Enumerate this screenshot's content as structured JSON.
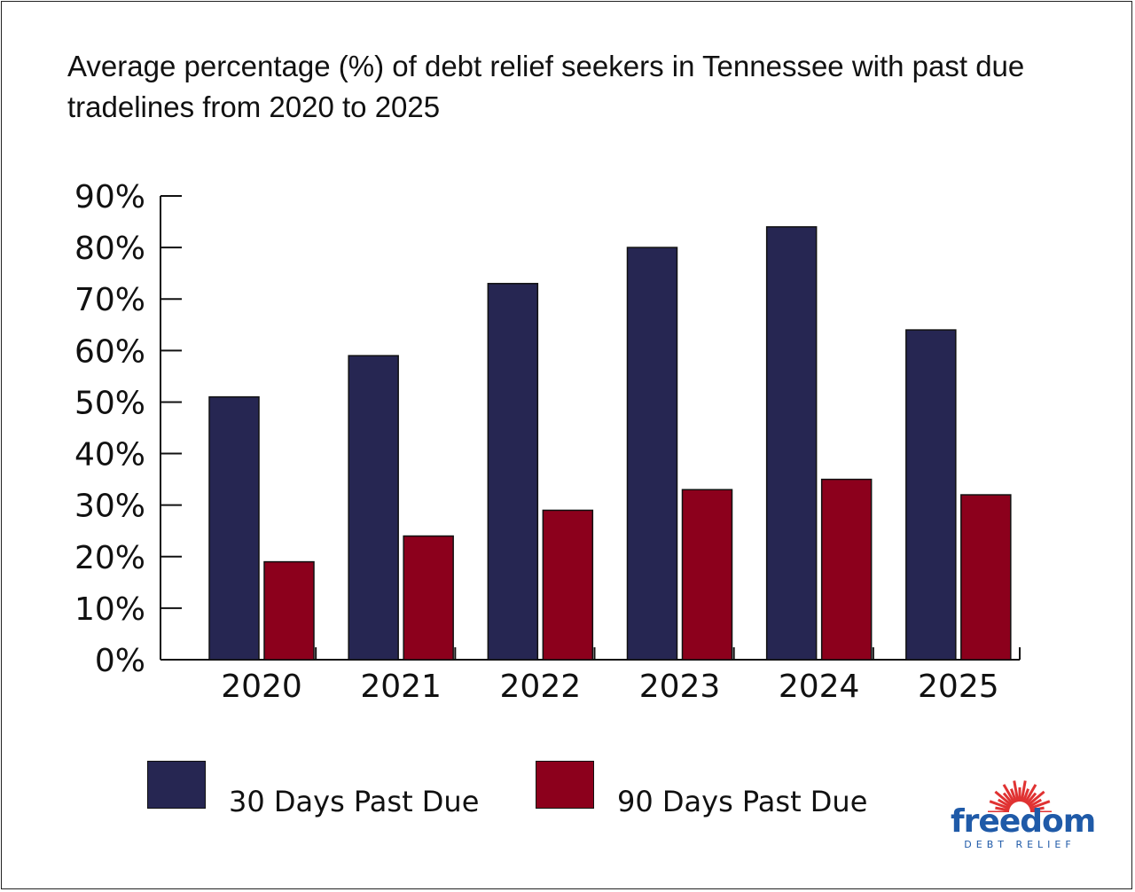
{
  "chart_data": {
    "type": "bar",
    "title": "Average percentage (%) of debt relief seekers in Tennessee with past due tradelines from 2020 to 2025",
    "xlabel": "",
    "ylabel": "",
    "categories": [
      "2020",
      "2021",
      "2022",
      "2023",
      "2024",
      "2025"
    ],
    "series": [
      {
        "name": "30 Days Past Due",
        "color": "#262652",
        "values": [
          51,
          59,
          73,
          80,
          84,
          64
        ]
      },
      {
        "name": "90 Days Past Due",
        "color": "#8c001c",
        "values": [
          19,
          24,
          29,
          33,
          35,
          32
        ]
      }
    ],
    "ylim": [
      0,
      90
    ],
    "yticks": [
      0,
      10,
      20,
      30,
      40,
      50,
      60,
      70,
      80,
      90
    ],
    "ytick_labels": [
      "0%",
      "10%",
      "20%",
      "30%",
      "40%",
      "50%",
      "60%",
      "70%",
      "80%",
      "90%"
    ],
    "grid": false,
    "legend_position": "bottom-left"
  },
  "logo": {
    "word": "freedom",
    "sub": "DEBT RELIEF",
    "word_color": "#1f5aa8",
    "sun_color": "#e03232"
  }
}
